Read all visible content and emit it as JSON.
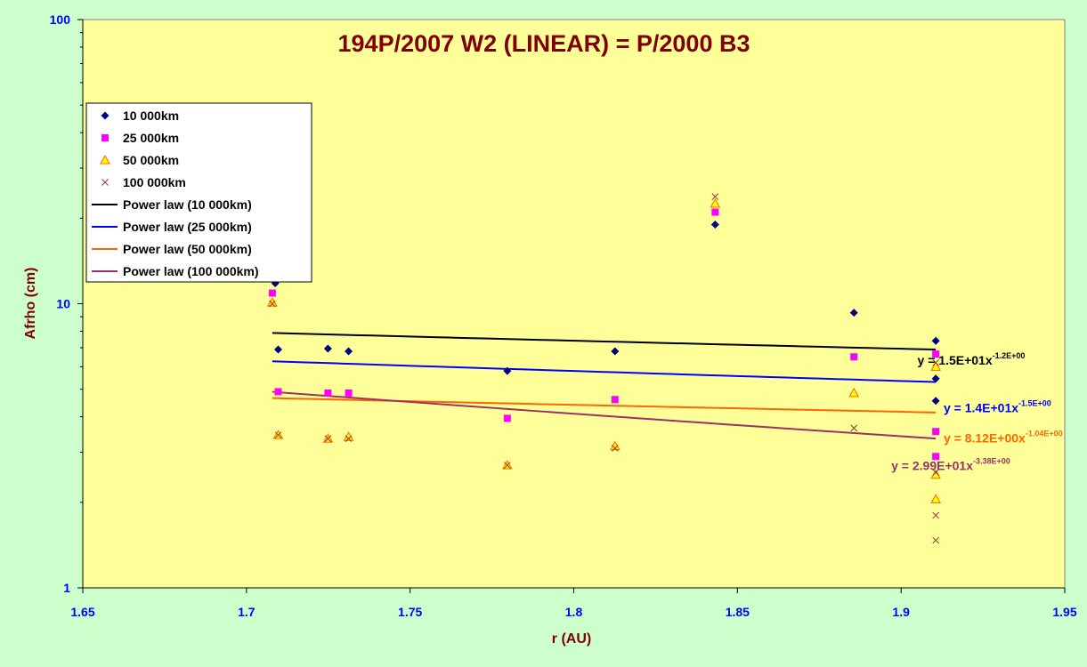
{
  "chart_data": {
    "type": "scatter",
    "title": "194P/2007 W2 (LINEAR) = P/2000 B3",
    "xlabel": "r (AU)",
    "ylabel": "Afrho (cm)",
    "xlim": [
      1.65,
      1.95
    ],
    "ylim": [
      1,
      100
    ],
    "yscale": "log",
    "x_ticks": [
      "1.65",
      "1.7",
      "1.75",
      "1.8",
      "1.85",
      "1.9",
      "1.95"
    ],
    "x_tick_values": [
      1.65,
      1.7,
      1.75,
      1.8,
      1.85,
      1.9,
      1.95
    ],
    "y_ticks": [
      "1",
      "10",
      "100"
    ],
    "y_tick_values": [
      1,
      10,
      100
    ],
    "plot_background": "#ffff99",
    "chart_background": "#ccffcc",
    "legend_position": "top-left",
    "series": [
      {
        "name": "10 000km",
        "marker": "diamond",
        "color": "#000080",
        "points": [
          [
            1.7088,
            11.8
          ],
          [
            1.7097,
            6.9
          ],
          [
            1.7249,
            6.95
          ],
          [
            1.7312,
            6.8
          ],
          [
            1.7797,
            5.8
          ],
          [
            1.8126,
            6.8
          ],
          [
            1.8432,
            19.0
          ],
          [
            1.8856,
            9.3
          ],
          [
            1.9106,
            7.4
          ],
          [
            1.9106,
            5.45
          ],
          [
            1.9106,
            4.55
          ]
        ]
      },
      {
        "name": "25 000km",
        "marker": "square",
        "color": "#ff00ff",
        "points": [
          [
            1.7079,
            10.9
          ],
          [
            1.7097,
            4.9
          ],
          [
            1.7249,
            4.85
          ],
          [
            1.7312,
            4.85
          ],
          [
            1.7797,
            3.95
          ],
          [
            1.8126,
            4.6
          ],
          [
            1.8432,
            21.0
          ],
          [
            1.8856,
            6.5
          ],
          [
            1.9106,
            6.65
          ],
          [
            1.9106,
            3.55
          ],
          [
            1.9106,
            2.9
          ]
        ]
      },
      {
        "name": "50 000km",
        "marker": "triangle",
        "color": "#ff6600",
        "fill": "#ffff00",
        "points": [
          [
            1.7079,
            10.1
          ],
          [
            1.7097,
            3.45
          ],
          [
            1.7249,
            3.35
          ],
          [
            1.7312,
            3.4
          ],
          [
            1.7797,
            2.7
          ],
          [
            1.8126,
            3.15
          ],
          [
            1.8432,
            22.5
          ],
          [
            1.8856,
            4.85
          ],
          [
            1.9106,
            6.0
          ],
          [
            1.9106,
            2.5
          ],
          [
            1.9106,
            2.05
          ]
        ]
      },
      {
        "name": "100 000km",
        "marker": "x",
        "color": "#993333",
        "points": [
          [
            1.7079,
            10.0
          ],
          [
            1.7097,
            3.45
          ],
          [
            1.7249,
            3.35
          ],
          [
            1.7312,
            3.35
          ],
          [
            1.7797,
            2.7
          ],
          [
            1.8126,
            3.1
          ],
          [
            1.8432,
            23.8
          ],
          [
            1.8856,
            3.65
          ],
          [
            1.9106,
            6.2
          ],
          [
            1.9106,
            2.55
          ],
          [
            1.9106,
            1.8
          ],
          [
            1.9106,
            1.47
          ]
        ]
      }
    ],
    "trendlines": [
      {
        "name": "Power law (10 000km)",
        "color": "#000000",
        "a": 15,
        "b": -1.2,
        "x_range": [
          1.7079,
          1.9106
        ],
        "equation_main": "y = 1.5E+01x",
        "equation_exp": "-1.2E+00",
        "label_at": [
          1.905,
          6.1
        ]
      },
      {
        "name": "Power law (25 000km)",
        "color": "#0000ff",
        "a": 14,
        "b": -1.5,
        "x_range": [
          1.7079,
          1.9106
        ],
        "equation_main": "y = 1.4E+01x",
        "equation_exp": "-1.5E+00",
        "label_at": [
          1.913,
          4.15
        ]
      },
      {
        "name": "Power law (50 000km)",
        "color": "#ff6600",
        "a": 8.12,
        "b": -1.04,
        "x_range": [
          1.7079,
          1.9106
        ],
        "equation_main": "y = 8.12E+00x",
        "equation_exp": "-1.04E+00",
        "label_at": [
          1.913,
          3.25
        ]
      },
      {
        "name": "Power law (100 000km)",
        "color": "#993366",
        "a": 29.9,
        "b": -3.38,
        "x_range": [
          1.7079,
          1.9106
        ],
        "equation_main": "y = 2.99E+01x",
        "equation_exp": "-3.38E+00",
        "label_at": [
          1.897,
          2.6
        ]
      }
    ]
  }
}
